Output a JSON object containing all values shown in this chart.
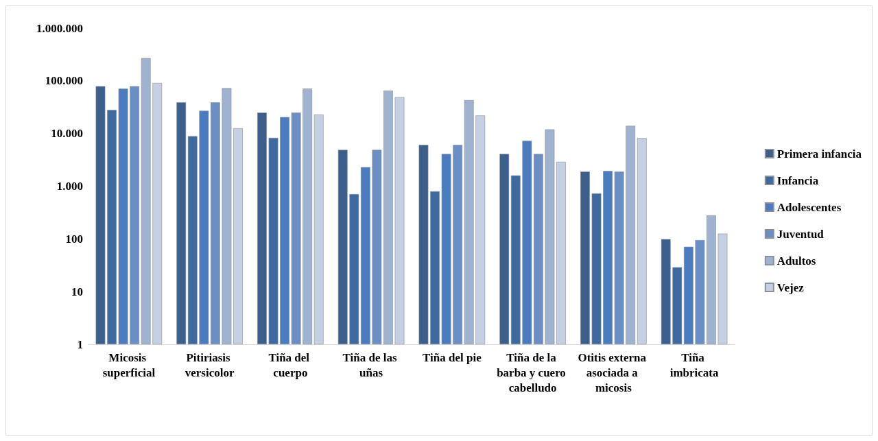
{
  "chart_data": {
    "type": "bar",
    "log": "y",
    "grid": false,
    "legend": "right",
    "categories": [
      "Micosis superficial",
      "Pitiriasis versicolor",
      "Tiña del cuerpo",
      "Tiña de las uñas",
      "Tiña del pie",
      "Tiña de la barba y cuero cabelludo",
      "Otitis externa asociada a micosis",
      "Tiña imbricata"
    ],
    "ylim": [
      1,
      1000000
    ],
    "yticks": [
      1,
      10,
      100,
      {
        "value": 1000,
        "label": "1.000"
      },
      {
        "value": 10000,
        "label": "10.000"
      },
      {
        "value": 100000,
        "label": "100.000"
      },
      {
        "value": 1000000,
        "label": "1.000.000"
      }
    ],
    "series": [
      {
        "name": "Primera infancia",
        "color": "#3d5f8c",
        "values": [
          79000,
          39000,
          25000,
          4900,
          6100,
          4100,
          1900,
          99
        ]
      },
      {
        "name": "Infancia",
        "color": "#3f6aa0",
        "values": [
          28000,
          8900,
          8300,
          710,
          800,
          1600,
          730,
          29
        ]
      },
      {
        "name": "Adolescentes",
        "color": "#4a7cbf",
        "values": [
          71000,
          27000,
          20500,
          2300,
          4100,
          7300,
          1950,
          71
        ]
      },
      {
        "name": "Juventud",
        "color": "#6b8fc4",
        "values": [
          79000,
          39000,
          25000,
          4900,
          6100,
          4100,
          1900,
          95
        ]
      },
      {
        "name": "Adultos",
        "color": "#9fb3d1",
        "values": [
          270000,
          73000,
          71000,
          65000,
          43000,
          12000,
          14000,
          280
        ]
      },
      {
        "name": "Vejez",
        "color": "#c5d0e3",
        "values": [
          91000,
          12600,
          23000,
          49000,
          22000,
          2900,
          8200,
          126
        ]
      }
    ]
  }
}
